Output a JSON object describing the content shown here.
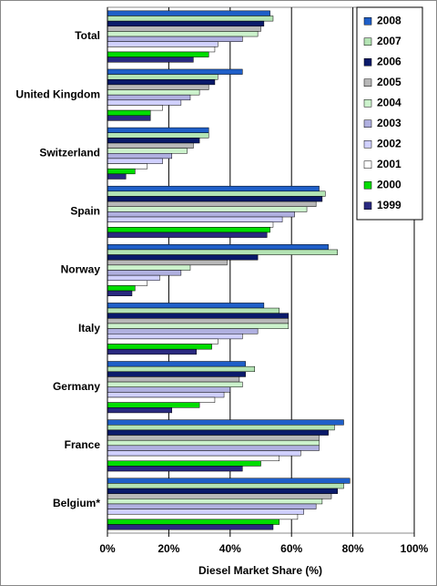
{
  "chart_data": {
    "type": "hbar",
    "xlabel": "Diesel Market Share (%)",
    "categories": [
      "Total",
      "United Kingdom",
      "Switzerland",
      "Spain",
      "Norway",
      "Italy",
      "Germany",
      "France",
      "Belgium*"
    ],
    "series": [
      {
        "name": "2008",
        "color": "#1f5fc8",
        "values": [
          53,
          44,
          33,
          69,
          72,
          51,
          45,
          77,
          79
        ]
      },
      {
        "name": "2007",
        "color": "#b4e4b4",
        "values": [
          54,
          36,
          33,
          71,
          75,
          56,
          48,
          74,
          77
        ]
      },
      {
        "name": "2006",
        "color": "#0a1a6a",
        "values": [
          51,
          35,
          30,
          70,
          49,
          59,
          45,
          72,
          75
        ]
      },
      {
        "name": "2005",
        "color": "#b8b8b8",
        "values": [
          50,
          33,
          28,
          68,
          39,
          59,
          43,
          69,
          73
        ]
      },
      {
        "name": "2004",
        "color": "#ccf2cc",
        "values": [
          49,
          30,
          26,
          65,
          27,
          59,
          44,
          69,
          70
        ]
      },
      {
        "name": "2003",
        "color": "#b0b0e0",
        "values": [
          44,
          27,
          21,
          61,
          24,
          49,
          40,
          69,
          68
        ]
      },
      {
        "name": "2002",
        "color": "#d0d0ff",
        "values": [
          36,
          24,
          18,
          57,
          17,
          44,
          38,
          63,
          64
        ]
      },
      {
        "name": "2001",
        "color": "#ffffff",
        "values": [
          35,
          18,
          13,
          54,
          13,
          36,
          35,
          56,
          62
        ]
      },
      {
        "name": "2000",
        "color": "#00dd00",
        "values": [
          33,
          14,
          9,
          53,
          9,
          34,
          30,
          50,
          56
        ]
      },
      {
        "name": "1999",
        "color": "#2a2a80",
        "values": [
          28,
          14,
          6,
          52,
          8,
          29,
          21,
          44,
          54
        ]
      }
    ],
    "xlim": [
      0,
      100
    ],
    "xticks": [
      {
        "value": 0,
        "label": "0%"
      },
      {
        "value": 20,
        "label": "20%"
      },
      {
        "value": 40,
        "label": "40%"
      },
      {
        "value": 60,
        "label": "60%"
      },
      {
        "value": 80,
        "label": "80%"
      },
      {
        "value": 100,
        "label": "100%"
      }
    ],
    "grid": true,
    "legend": "upper right"
  }
}
